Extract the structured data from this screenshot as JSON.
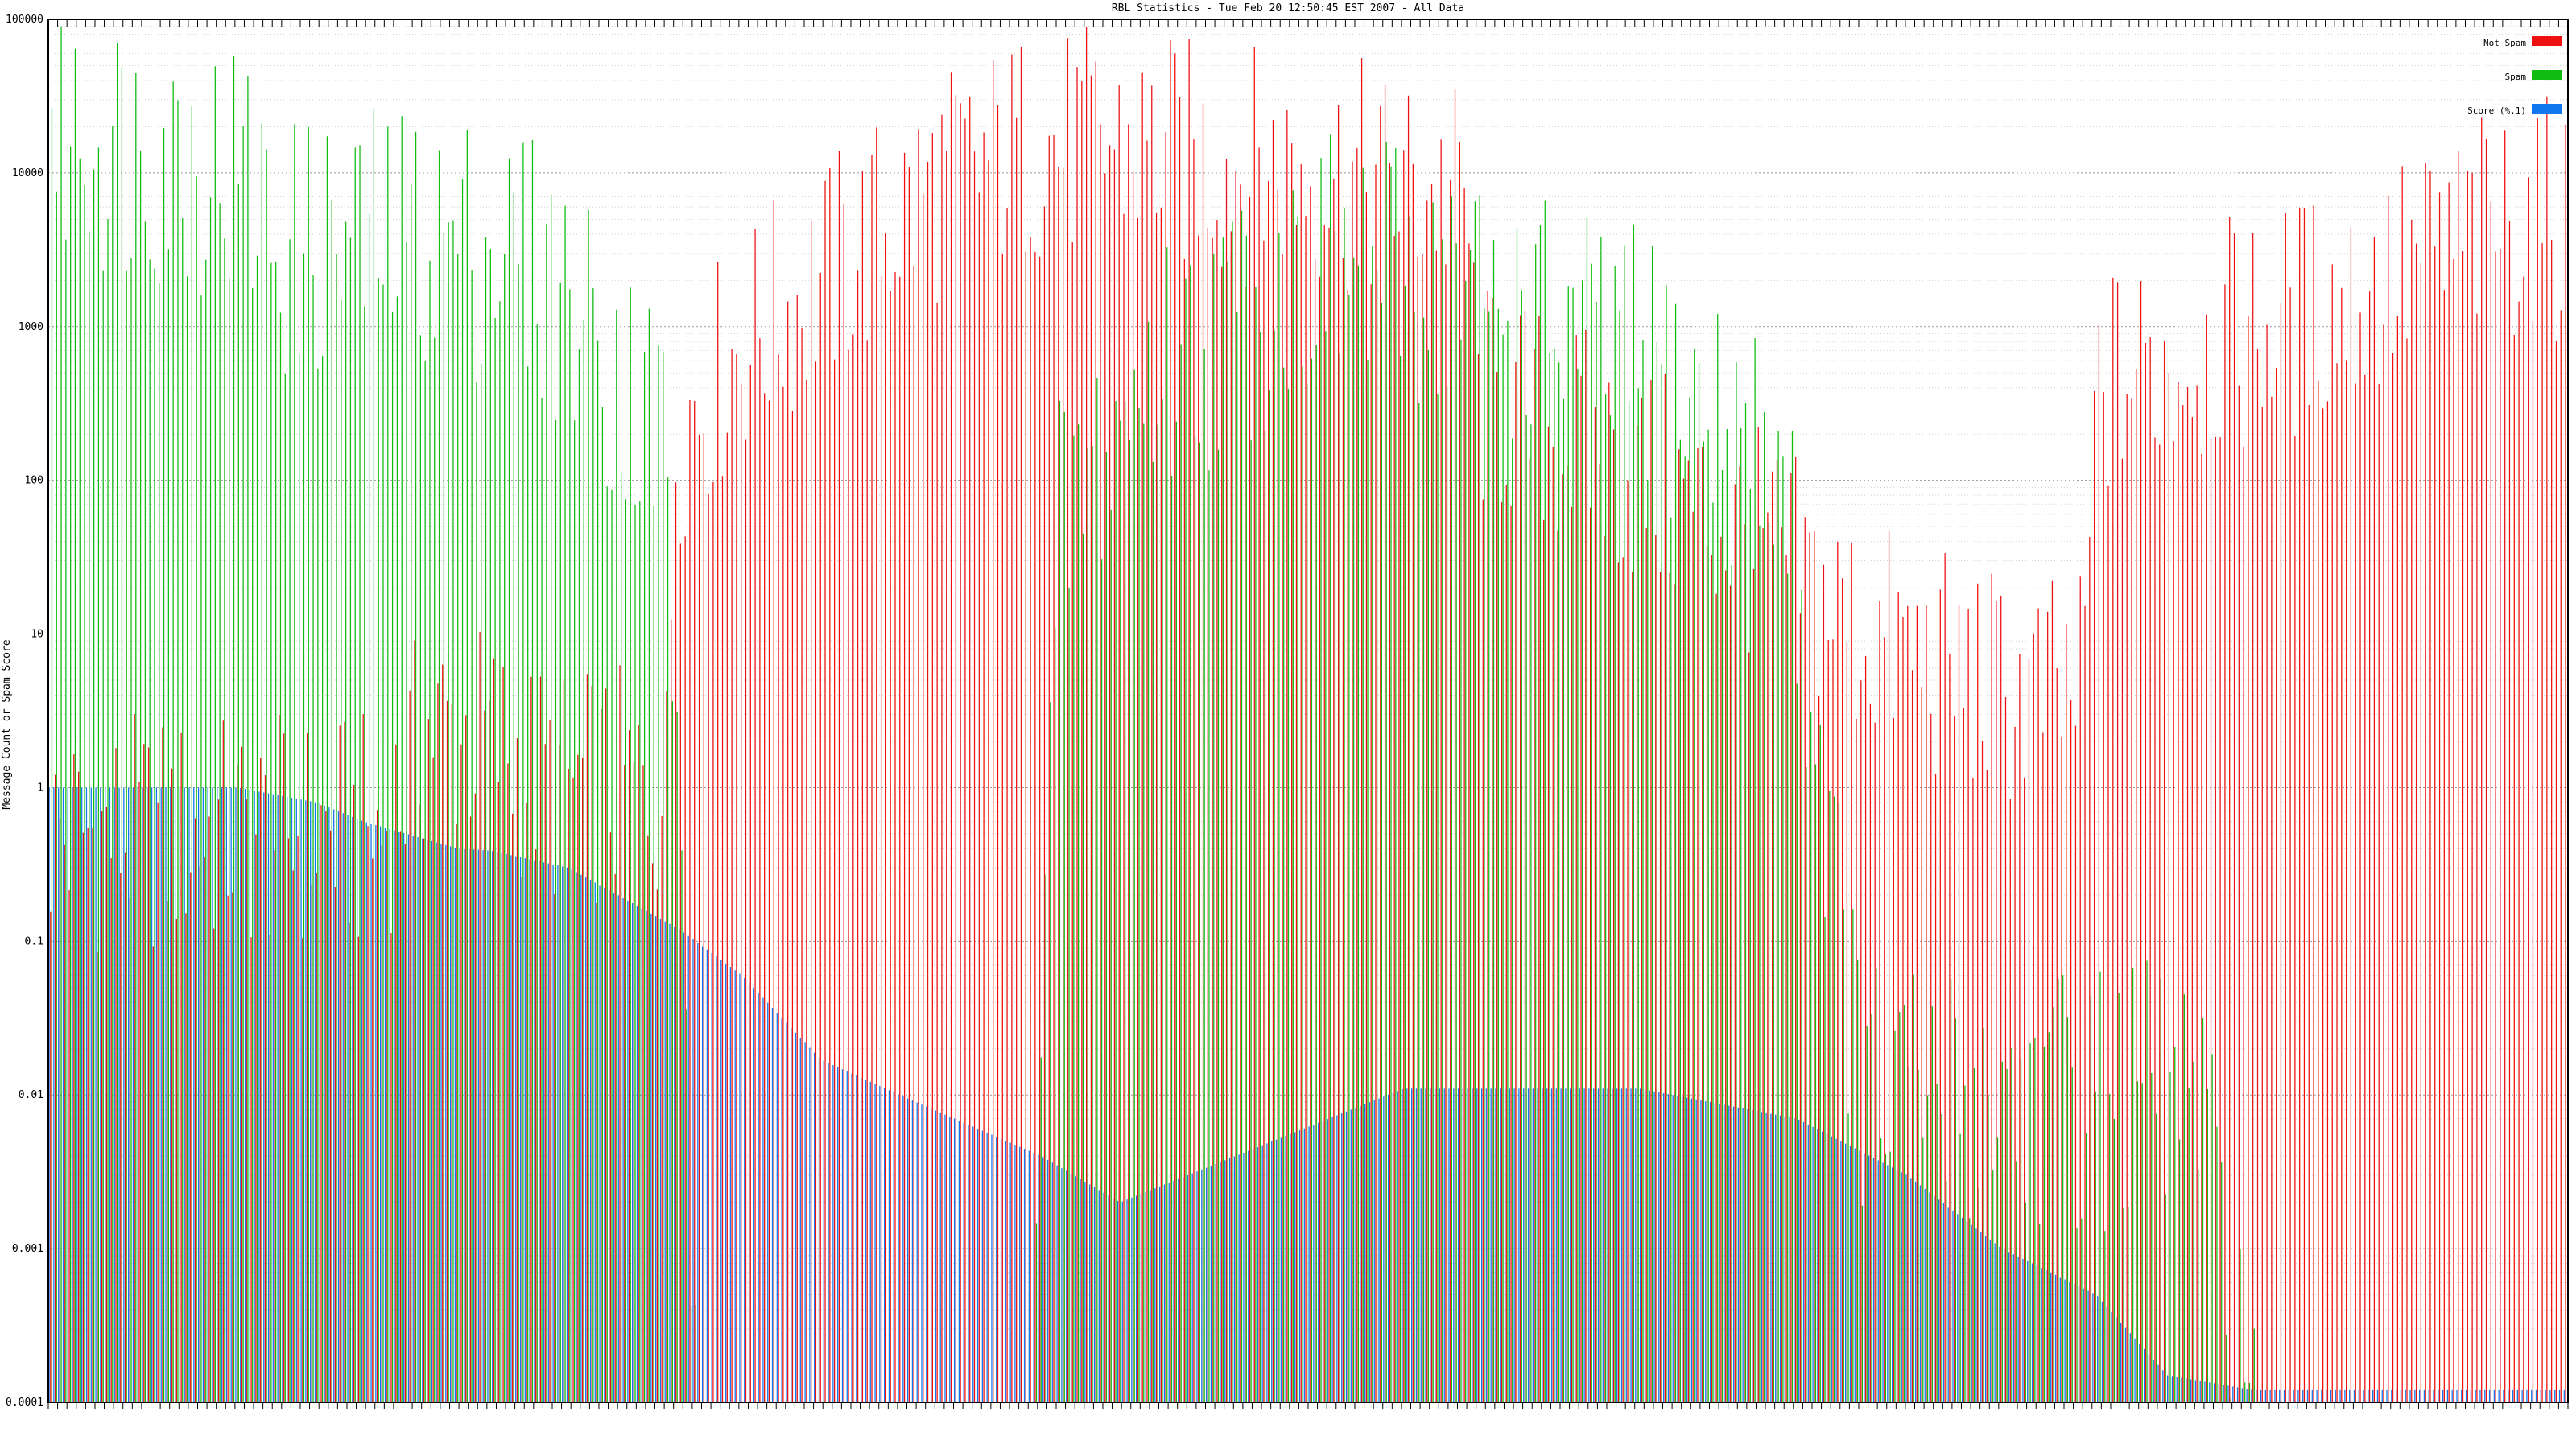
{
  "chart_data": {
    "type": "bar",
    "title": "RBL Statistics - Tue Feb 20 12:50:45 EST 2007 - All Data",
    "ylabel": "Message Count or Spam Score",
    "xlabel": "",
    "yscale": "log",
    "ylim": [
      0.0001,
      100000
    ],
    "grid": true,
    "legend_position": "top-right",
    "y_ticks": [
      "0.0001",
      "0.001",
      "0.01",
      "0.1",
      "1",
      "10",
      "100",
      "1000",
      "10000",
      "100000"
    ],
    "y_tick_values": [
      0.0001,
      0.001,
      0.01,
      0.1,
      1,
      10,
      100,
      1000,
      10000,
      100000
    ],
    "series": [
      {
        "name": "Not Spam",
        "color": "#ee1111"
      },
      {
        "name": "Spam",
        "color": "#11bb11"
      },
      {
        "name": "Score (%.1)",
        "color": "#1177ee"
      }
    ],
    "category_count": 540,
    "note_x_labels": "Category labels along the x-axis are illegible at this resolution.",
    "score_profile": [
      [
        0,
        1
      ],
      [
        120,
        1
      ],
      [
        170,
        0.8
      ],
      [
        200,
        0.6
      ],
      [
        260,
        0.4
      ],
      [
        280,
        0.39
      ],
      [
        330,
        0.3
      ],
      [
        400,
        0.12
      ],
      [
        440,
        0.06
      ],
      [
        490,
        0.017
      ],
      [
        540,
        0.01
      ],
      [
        630,
        0.004
      ],
      [
        680,
        0.002
      ],
      [
        860,
        0.011
      ],
      [
        1010,
        0.011
      ],
      [
        1110,
        0.007
      ],
      [
        1180,
        0.003
      ],
      [
        1240,
        0.001
      ],
      [
        1300,
        0.0005
      ],
      [
        1345,
        0.00015
      ],
      [
        1400,
        0.00012
      ]
    ],
    "notspam_profile": [
      [
        0,
        0.5
      ],
      [
        170,
        0.5
      ],
      [
        210,
        0.5
      ],
      [
        240,
        2.5
      ],
      [
        280,
        2.0
      ],
      [
        320,
        1.0
      ],
      [
        360,
        1.0
      ],
      [
        393,
        1.0
      ],
      [
        395,
        200
      ],
      [
        440,
        800
      ],
      [
        490,
        2000
      ],
      [
        560,
        8000
      ],
      [
        620,
        15000
      ],
      [
        680,
        15000
      ],
      [
        740,
        12000
      ],
      [
        810,
        10000
      ],
      [
        860,
        8000
      ],
      [
        900,
        7000
      ],
      [
        905,
        350
      ],
      [
        960,
        200
      ],
      [
        1000,
        120
      ],
      [
        1050,
        60
      ],
      [
        1100,
        30
      ],
      [
        1150,
        10
      ],
      [
        1200,
        6
      ],
      [
        1250,
        4
      ],
      [
        1290,
        4
      ],
      [
        1300,
        400
      ],
      [
        1380,
        800
      ],
      [
        1460,
        1500
      ],
      [
        1560,
        5000
      ],
      [
        1594,
        5000
      ]
    ],
    "spam_profile": [
      [
        0,
        20000
      ],
      [
        60,
        15000
      ],
      [
        120,
        10000
      ],
      [
        150,
        3000
      ],
      [
        230,
        4000
      ],
      [
        300,
        3000
      ],
      [
        340,
        1000
      ],
      [
        390,
        200
      ],
      [
        410,
        0.0001
      ],
      [
        620,
        0.0001
      ],
      [
        640,
        50
      ],
      [
        700,
        500
      ],
      [
        800,
        2500
      ],
      [
        880,
        2000
      ],
      [
        950,
        1000
      ],
      [
        1020,
        500
      ],
      [
        1100,
        100
      ],
      [
        1150,
        0.01
      ],
      [
        1320,
        0.01
      ],
      [
        1360,
        0.01
      ],
      [
        1400,
        0.0001
      ],
      [
        1580,
        0.0001
      ]
    ],
    "cat_left": 60,
    "cat_step": 2.845,
    "cat_count": 540
  }
}
